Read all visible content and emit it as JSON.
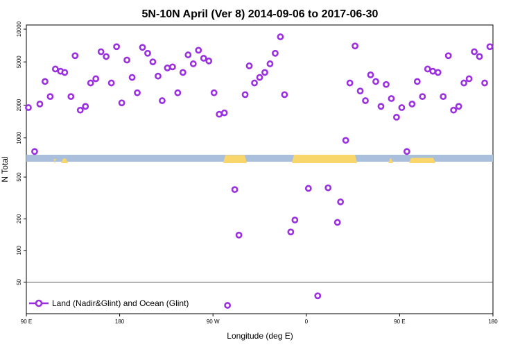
{
  "chart_data": {
    "type": "scatter",
    "title": "5N-10N April (Ver 8)   2014-09-06 to 2017-06-30",
    "xlabel": "Longitude (deg E)",
    "ylabel": "N Total",
    "x_ticks": [
      {
        "lon": 90,
        "label": "90 E"
      },
      {
        "lon": 180,
        "label": "180"
      },
      {
        "lon": 270,
        "label": "90 W"
      },
      {
        "lon": 360,
        "label": "0"
      },
      {
        "lon": 450,
        "label": "90 E"
      },
      {
        "lon": 540,
        "label": "180"
      }
    ],
    "xlim": [
      90,
      540
    ],
    "y_scale": "log",
    "ylim": [
      25,
      11000
    ],
    "y_ticks_upper": [
      1000,
      2000,
      5000,
      10000
    ],
    "y_ticks_lower": [
      50,
      100,
      200,
      500
    ],
    "reference_line": 50,
    "map_strip": {
      "land_color": "#f9d66b",
      "ocean_color": "#a9bfdc"
    },
    "series": [
      {
        "name": "Land (Nadir&Glint) and Ocean (Glint)",
        "color": "#9b30e0",
        "marker": "open-circle",
        "points": [
          [
            92,
            1900
          ],
          [
            98,
            750
          ],
          [
            103,
            2050
          ],
          [
            108,
            3300
          ],
          [
            113,
            2400
          ],
          [
            118,
            4300
          ],
          [
            123,
            4100
          ],
          [
            127,
            4000
          ],
          [
            133,
            2400
          ],
          [
            137,
            5700
          ],
          [
            142,
            1800
          ],
          [
            147,
            1950
          ],
          [
            152,
            3200
          ],
          [
            157,
            3500
          ],
          [
            162,
            6200
          ],
          [
            167,
            5600
          ],
          [
            172,
            3200
          ],
          [
            177,
            6900
          ],
          [
            182,
            2100
          ],
          [
            187,
            5200
          ],
          [
            192,
            3600
          ],
          [
            197,
            2600
          ],
          [
            202,
            6800
          ],
          [
            207,
            6000
          ],
          [
            212,
            5000
          ],
          [
            217,
            3700
          ],
          [
            221,
            2200
          ],
          [
            226,
            4400
          ],
          [
            231,
            4500
          ],
          [
            236,
            2600
          ],
          [
            241,
            4000
          ],
          [
            246,
            5800
          ],
          [
            251,
            4800
          ],
          [
            256,
            6400
          ],
          [
            261,
            5400
          ],
          [
            266,
            5100
          ],
          [
            271,
            2600
          ],
          [
            276,
            1650
          ],
          [
            281,
            1700
          ],
          [
            284,
            30
          ],
          [
            291,
            380
          ],
          [
            295,
            140
          ],
          [
            301,
            2500
          ],
          [
            305,
            4600
          ],
          [
            310,
            3200
          ],
          [
            315,
            3600
          ],
          [
            320,
            4000
          ],
          [
            325,
            4800
          ],
          [
            330,
            6000
          ],
          [
            335,
            8500
          ],
          [
            339,
            2500
          ],
          [
            345,
            150
          ],
          [
            349,
            195
          ],
          [
            362,
            390
          ],
          [
            371,
            37
          ],
          [
            381,
            395
          ],
          [
            390,
            185
          ],
          [
            393,
            290
          ],
          [
            398,
            950
          ],
          [
            402,
            3200
          ],
          [
            407,
            7000
          ],
          [
            412,
            2700
          ],
          [
            417,
            2200
          ],
          [
            422,
            3800
          ],
          [
            427,
            3300
          ],
          [
            432,
            1950
          ],
          [
            437,
            3100
          ],
          [
            442,
            2300
          ],
          [
            447,
            1550
          ],
          [
            452,
            1900
          ],
          [
            457,
            750
          ],
          [
            462,
            2050
          ],
          [
            467,
            3300
          ],
          [
            472,
            2400
          ],
          [
            477,
            4300
          ],
          [
            482,
            4100
          ],
          [
            487,
            4000
          ],
          [
            492,
            2400
          ],
          [
            497,
            5700
          ],
          [
            502,
            1800
          ],
          [
            507,
            1950
          ],
          [
            512,
            3200
          ],
          [
            517,
            3500
          ],
          [
            522,
            6200
          ],
          [
            527,
            5600
          ],
          [
            532,
            3200
          ],
          [
            537,
            6900
          ]
        ]
      }
    ],
    "legend": {
      "position": "bottom-left",
      "label": "Land (Nadir&Glint) and Ocean (Glint)"
    }
  }
}
